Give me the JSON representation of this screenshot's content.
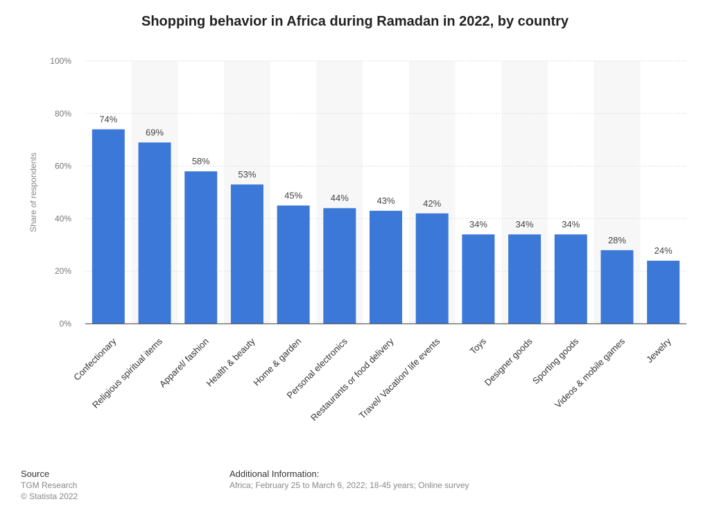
{
  "chart_data": {
    "type": "bar",
    "title": "Shopping behavior in Africa during Ramadan in 2022, by country",
    "ylabel": "Share of respondents",
    "xlabel": "",
    "ylim": [
      0,
      100
    ],
    "yticks": [
      "0%",
      "20%",
      "40%",
      "60%",
      "80%",
      "100%"
    ],
    "categories": [
      "Confectionary",
      "Religious spiritual items",
      "Apparel/ fashion",
      "Health & beauty",
      "Home & garden",
      "Personal electronics",
      "Restaurants or food delivery",
      "Travel/ Vacation/ life events",
      "Toys",
      "Designer goods",
      "Sporting goods",
      "Videos & mobile games",
      "Jewelry"
    ],
    "values": [
      74,
      69,
      58,
      53,
      45,
      44,
      43,
      42,
      34,
      34,
      34,
      28,
      24
    ],
    "value_labels": [
      "74%",
      "69%",
      "58%",
      "53%",
      "45%",
      "44%",
      "43%",
      "42%",
      "34%",
      "34%",
      "34%",
      "28%",
      "24%"
    ],
    "bar_color": "#3c78d8",
    "grid": true
  },
  "footer": {
    "source_heading": "Source",
    "source_name": "TGM Research",
    "copyright": "© Statista 2022",
    "info_heading": "Additional Information:",
    "info_text": "Africa; February 25 to March 6, 2022; 18-45 years; Online survey"
  }
}
